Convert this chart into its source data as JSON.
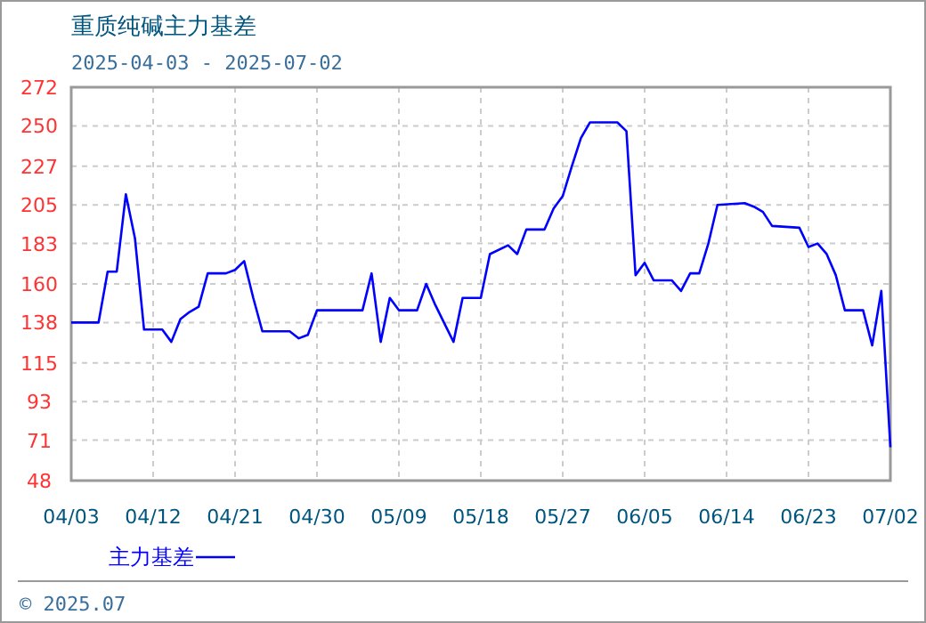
{
  "chart_data": {
    "type": "line",
    "title": "重质纯碱主力基差",
    "subtitle": "2025-04-03 - 2025-07-02",
    "x": [
      "2025-04-03",
      "2025-04-06",
      "2025-04-07",
      "2025-04-08",
      "2025-04-09",
      "2025-04-10",
      "2025-04-11",
      "2025-04-13",
      "2025-04-14",
      "2025-04-15",
      "2025-04-16",
      "2025-04-17",
      "2025-04-18",
      "2025-04-20",
      "2025-04-21",
      "2025-04-22",
      "2025-04-23",
      "2025-04-24",
      "2025-04-27",
      "2025-04-28",
      "2025-04-29",
      "2025-04-30",
      "2025-05-05",
      "2025-05-06",
      "2025-05-07",
      "2025-05-08",
      "2025-05-09",
      "2025-05-11",
      "2025-05-12",
      "2025-05-13",
      "2025-05-15",
      "2025-05-16",
      "2025-05-18",
      "2025-05-19",
      "2025-05-21",
      "2025-05-22",
      "2025-05-23",
      "2025-05-25",
      "2025-05-26",
      "2025-05-27",
      "2025-05-28",
      "2025-05-29",
      "2025-05-30",
      "2025-06-02",
      "2025-06-03",
      "2025-06-04",
      "2025-06-05",
      "2025-06-06",
      "2025-06-08",
      "2025-06-09",
      "2025-06-10",
      "2025-06-11",
      "2025-06-12",
      "2025-06-13",
      "2025-06-16",
      "2025-06-17",
      "2025-06-18",
      "2025-06-19",
      "2025-06-22",
      "2025-06-23",
      "2025-06-24",
      "2025-06-25",
      "2025-06-26",
      "2025-06-27",
      "2025-06-29",
      "2025-06-30",
      "2025-07-01",
      "2025-07-02"
    ],
    "series": [
      {
        "name": "主力基差",
        "color": "#0000ff",
        "values": [
          138,
          138,
          167,
          167,
          211,
          186,
          134,
          134,
          127,
          140,
          144,
          147,
          166,
          166,
          168,
          173,
          152,
          133,
          133,
          129,
          131,
          145,
          145,
          166,
          127,
          152,
          145,
          145,
          160,
          148,
          127,
          152,
          152,
          177,
          182,
          177,
          191,
          191,
          203,
          210,
          227,
          243,
          252,
          252,
          247,
          165,
          172,
          162,
          162,
          156,
          166,
          166,
          183,
          205,
          206,
          204,
          201,
          193,
          192,
          181,
          183,
          177,
          165,
          145,
          145,
          125,
          156,
          67
        ]
      }
    ],
    "xlim": [
      "2025-04-03",
      "2025-07-02"
    ],
    "xticks": [
      {
        "value": "2025-04-03",
        "label": "04/03"
      },
      {
        "value": "2025-04-12",
        "label": "04/12"
      },
      {
        "value": "2025-04-21",
        "label": "04/21"
      },
      {
        "value": "2025-04-30",
        "label": "04/30"
      },
      {
        "value": "2025-05-09",
        "label": "05/09"
      },
      {
        "value": "2025-05-18",
        "label": "05/18"
      },
      {
        "value": "2025-05-27",
        "label": "05/27"
      },
      {
        "value": "2025-06-05",
        "label": "06/05"
      },
      {
        "value": "2025-06-14",
        "label": "06/14"
      },
      {
        "value": "2025-06-23",
        "label": "06/23"
      },
      {
        "value": "2025-07-02",
        "label": "07/02"
      }
    ],
    "ylim": [
      48,
      272
    ],
    "yticks": [
      48,
      71,
      93,
      115,
      138,
      160,
      183,
      205,
      227,
      250,
      272
    ],
    "grid": true,
    "legend": "bottom left",
    "marker": "none",
    "line_style": "solid",
    "annotations": [
      "© 2025.07"
    ]
  }
}
